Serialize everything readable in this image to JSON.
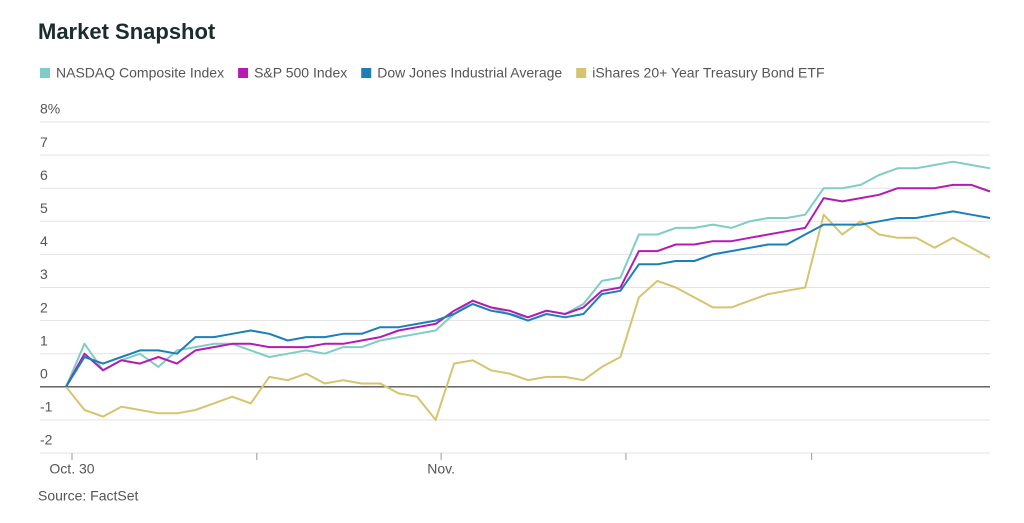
{
  "chart_data": {
    "type": "line",
    "title": "Market Snapshot",
    "source": "Source: FactSet",
    "x": [
      0,
      2,
      4,
      6,
      8,
      10,
      12,
      14,
      16,
      18,
      20,
      22,
      24,
      26,
      28,
      30,
      32,
      34,
      36,
      38,
      40,
      42,
      44,
      46,
      48,
      50,
      52,
      54,
      56,
      58,
      60,
      62,
      64,
      66,
      68,
      70,
      72,
      74,
      76,
      78,
      80,
      82,
      84,
      86,
      88,
      90,
      92,
      94,
      96,
      98,
      100
    ],
    "xlim": [
      0,
      100
    ],
    "xticks": [
      {
        "value": 0.65,
        "label": "Oct. 30"
      },
      {
        "value": 20.65,
        "label": null
      },
      {
        "value": 40.6,
        "label": "Nov."
      },
      {
        "value": 60.6,
        "label": null
      },
      {
        "value": 80.7,
        "label": null
      }
    ],
    "ylim": [
      -2,
      8
    ],
    "yticks": [
      -2,
      -1,
      0,
      1,
      2,
      3,
      4,
      5,
      6,
      7,
      {
        "value": 8,
        "label": "8%"
      }
    ],
    "grid": true,
    "series": [
      {
        "name": "NASDAQ Composite Index",
        "color": "#7fcdc6",
        "values": [
          0,
          1.3,
          0.5,
          0.8,
          1.0,
          0.6,
          1.1,
          1.2,
          1.3,
          1.3,
          1.1,
          0.9,
          1.0,
          1.1,
          1.0,
          1.2,
          1.2,
          1.4,
          1.5,
          1.6,
          1.7,
          2.2,
          2.6,
          2.4,
          2.2,
          2.1,
          2.3,
          2.2,
          2.5,
          3.2,
          3.3,
          4.6,
          4.6,
          4.8,
          4.8,
          4.9,
          4.8,
          5.0,
          5.1,
          5.1,
          5.2,
          6.0,
          6.0,
          6.1,
          6.4,
          6.6,
          6.6,
          6.7,
          6.8,
          6.7,
          6.6
        ]
      },
      {
        "name": "S&P 500 Index",
        "color": "#b41bb4",
        "values": [
          0,
          1.0,
          0.5,
          0.8,
          0.7,
          0.9,
          0.7,
          1.1,
          1.2,
          1.3,
          1.3,
          1.2,
          1.2,
          1.2,
          1.3,
          1.3,
          1.4,
          1.5,
          1.7,
          1.8,
          1.9,
          2.3,
          2.6,
          2.4,
          2.3,
          2.1,
          2.3,
          2.2,
          2.4,
          2.9,
          3.0,
          4.1,
          4.1,
          4.3,
          4.3,
          4.4,
          4.4,
          4.5,
          4.6,
          4.7,
          4.8,
          5.7,
          5.6,
          5.7,
          5.8,
          6.0,
          6.0,
          6.0,
          6.1,
          6.1,
          5.9
        ]
      },
      {
        "name": "Dow Jones Industrial Average",
        "color": "#1a80b6",
        "values": [
          0,
          0.9,
          0.7,
          0.9,
          1.1,
          1.1,
          1.0,
          1.5,
          1.5,
          1.6,
          1.7,
          1.6,
          1.4,
          1.5,
          1.5,
          1.6,
          1.6,
          1.8,
          1.8,
          1.9,
          2.0,
          2.2,
          2.5,
          2.3,
          2.2,
          2.0,
          2.2,
          2.1,
          2.2,
          2.8,
          2.9,
          3.7,
          3.7,
          3.8,
          3.8,
          4.0,
          4.1,
          4.2,
          4.3,
          4.3,
          4.6,
          4.9,
          4.9,
          4.9,
          5.0,
          5.1,
          5.1,
          5.2,
          5.3,
          5.2,
          5.1
        ]
      },
      {
        "name": "iShares 20+ Year Treasury Bond ETF",
        "color": "#d6c46e",
        "values": [
          0,
          -0.7,
          -0.9,
          -0.6,
          -0.7,
          -0.8,
          -0.8,
          -0.7,
          -0.5,
          -0.3,
          -0.5,
          0.3,
          0.2,
          0.4,
          0.1,
          0.2,
          0.1,
          0.1,
          -0.2,
          -0.3,
          -1.0,
          0.7,
          0.8,
          0.5,
          0.4,
          0.2,
          0.3,
          0.3,
          0.2,
          0.6,
          0.9,
          2.7,
          3.2,
          3.0,
          2.7,
          2.4,
          2.4,
          2.6,
          2.8,
          2.9,
          3.0,
          5.2,
          4.6,
          5.0,
          4.6,
          4.5,
          4.5,
          4.2,
          4.5,
          4.2,
          3.9
        ]
      }
    ]
  }
}
